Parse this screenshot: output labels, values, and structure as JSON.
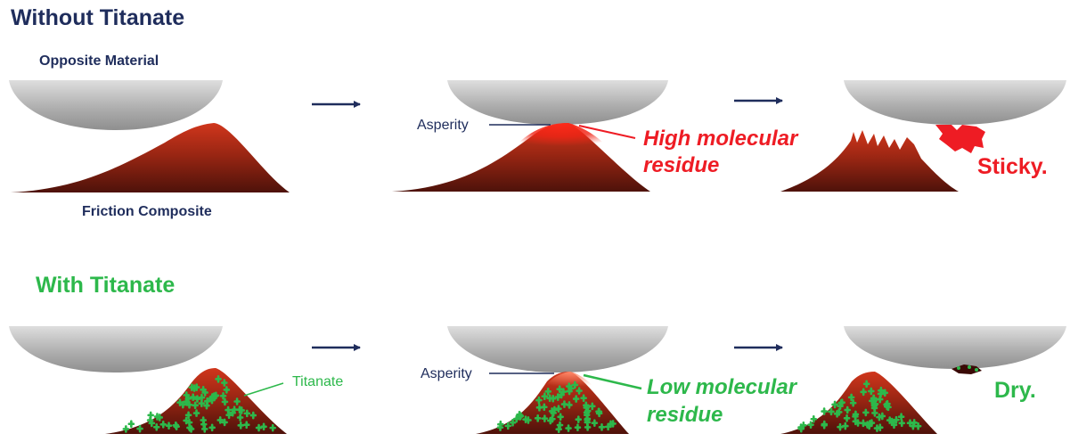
{
  "top_section": {
    "title": "Without Titanate",
    "opposite_label": "Opposite Material",
    "composite_label": "Friction Composite",
    "asperity_label": "Asperity",
    "residue_line1": "High molecular",
    "residue_line2": "residue",
    "result": "Sticky."
  },
  "bottom_section": {
    "title": "With Titanate",
    "titanate_label": "Titanate",
    "asperity_label": "Asperity",
    "residue_line1": "Low molecular",
    "residue_line2": "residue",
    "result": "Dry."
  },
  "colors": {
    "navy": "#1f2d5c",
    "red": "#ee1c24",
    "green": "#2db84b",
    "mound_dark": "#5a150c",
    "mound_light": "#c4301a",
    "gray": "#a8a8a8"
  }
}
